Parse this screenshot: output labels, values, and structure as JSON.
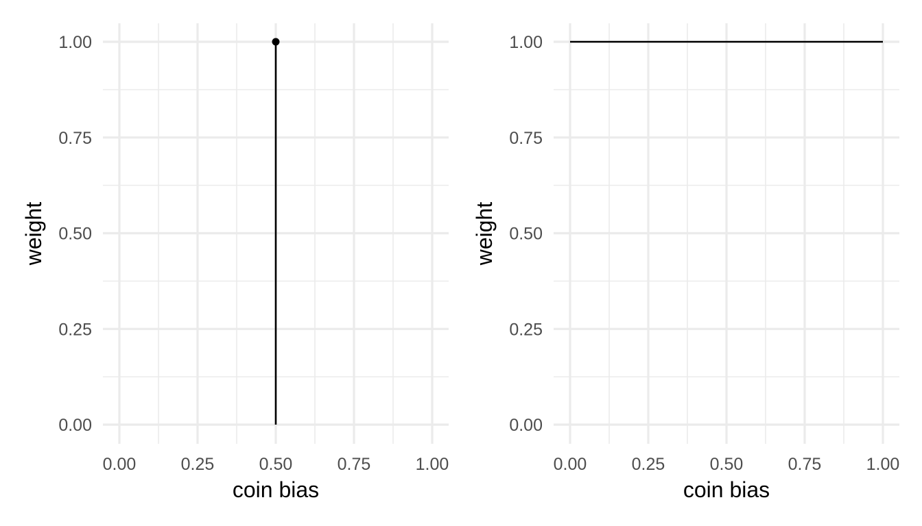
{
  "chart_data": [
    {
      "type": "line",
      "xlabel": "coin bias",
      "ylabel": "weight",
      "xlim": [
        0,
        1
      ],
      "ylim": [
        0,
        1
      ],
      "x_ticks": [
        "0.00",
        "0.25",
        "0.50",
        "0.75",
        "1.00"
      ],
      "y_ticks": [
        "0.00",
        "0.25",
        "0.50",
        "0.75",
        "1.00"
      ],
      "grid": true,
      "series": [
        {
          "points": [
            [
              0.5,
              0.0
            ],
            [
              0.5,
              1.0
            ]
          ],
          "marker_points": [
            [
              0.5,
              1.0
            ]
          ],
          "color": "#000000"
        }
      ]
    },
    {
      "type": "line",
      "xlabel": "coin bias",
      "ylabel": "weight",
      "xlim": [
        0,
        1
      ],
      "ylim": [
        0,
        1
      ],
      "x_ticks": [
        "0.00",
        "0.25",
        "0.50",
        "0.75",
        "1.00"
      ],
      "y_ticks": [
        "0.00",
        "0.25",
        "0.50",
        "0.75",
        "1.00"
      ],
      "grid": true,
      "series": [
        {
          "points": [
            [
              0.0,
              1.0
            ],
            [
              1.0,
              1.0
            ]
          ],
          "marker_points": [],
          "color": "#000000"
        }
      ]
    }
  ]
}
